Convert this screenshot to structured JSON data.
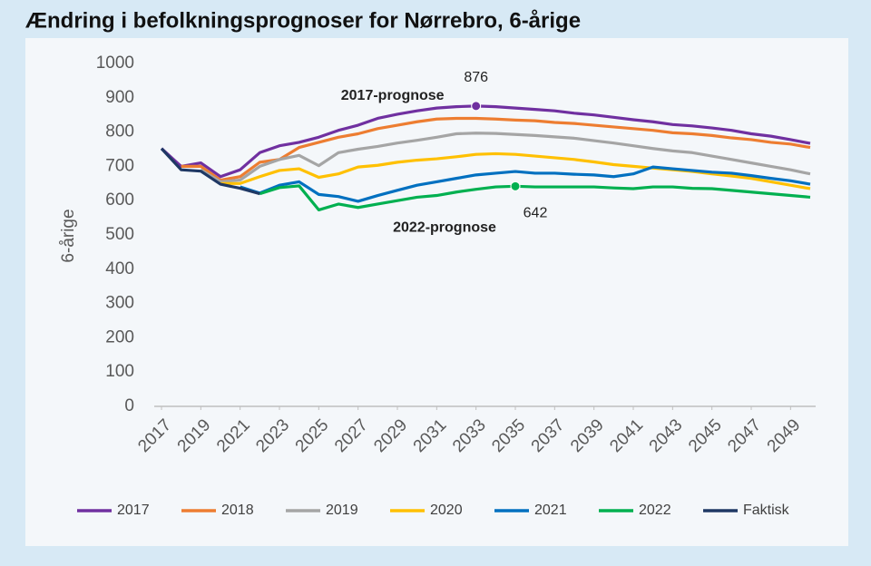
{
  "chart_data": {
    "type": "line",
    "title": "Ændring i befolkningsprognoser for Nørrebro, 6-årige",
    "y_label": "6-årige",
    "x": [
      2017,
      2018,
      2019,
      2020,
      2021,
      2022,
      2023,
      2024,
      2025,
      2026,
      2027,
      2028,
      2029,
      2030,
      2031,
      2032,
      2033,
      2034,
      2035,
      2036,
      2037,
      2038,
      2039,
      2040,
      2041,
      2042,
      2043,
      2044,
      2045,
      2046,
      2047,
      2048,
      2049,
      2050
    ],
    "xlim": [
      2017,
      2050
    ],
    "xticks": [
      2017,
      2019,
      2021,
      2023,
      2025,
      2027,
      2029,
      2031,
      2033,
      2035,
      2037,
      2039,
      2041,
      2043,
      2045,
      2047,
      2049
    ],
    "ylim": [
      0,
      1000
    ],
    "yticks": [
      0,
      100,
      200,
      300,
      400,
      500,
      600,
      700,
      800,
      900,
      1000
    ],
    "grid": false,
    "legend": "bottom",
    "annotations": [
      "2017-prognose",
      "2022-prognose"
    ],
    "highlights": [
      {
        "series": 0,
        "x": 2033
      },
      {
        "series": 5,
        "x": 2035
      }
    ],
    "series": [
      {
        "name": "2017",
        "color": "#7030a0",
        "values": [
          752,
          700,
          710,
          670,
          690,
          740,
          760,
          770,
          785,
          805,
          820,
          840,
          852,
          862,
          870,
          874,
          876,
          874,
          870,
          866,
          862,
          855,
          850,
          843,
          836,
          830,
          822,
          818,
          812,
          805,
          795,
          788,
          778,
          767
        ]
      },
      {
        "name": "2018",
        "color": "#ed7d31",
        "values": [
          null,
          700,
          700,
          660,
          670,
          712,
          720,
          755,
          770,
          785,
          795,
          810,
          820,
          830,
          838,
          840,
          840,
          838,
          835,
          833,
          828,
          825,
          820,
          815,
          810,
          805,
          798,
          795,
          790,
          783,
          778,
          770,
          765,
          755
        ]
      },
      {
        "name": "2019",
        "color": "#a5a5a5",
        "values": [
          null,
          null,
          690,
          655,
          660,
          700,
          720,
          732,
          702,
          740,
          750,
          758,
          768,
          776,
          785,
          795,
          797,
          796,
          793,
          790,
          786,
          782,
          775,
          768,
          760,
          752,
          745,
          740,
          730,
          720,
          710,
          700,
          690,
          678
        ]
      },
      {
        "name": "2020",
        "color": "#ffc000",
        "values": [
          null,
          null,
          null,
          650,
          650,
          670,
          688,
          693,
          668,
          678,
          698,
          703,
          712,
          718,
          722,
          728,
          735,
          737,
          735,
          730,
          725,
          720,
          713,
          705,
          700,
          695,
          690,
          685,
          678,
          672,
          665,
          655,
          645,
          635
        ]
      },
      {
        "name": "2021",
        "color": "#0070c0",
        "values": [
          null,
          null,
          null,
          null,
          640,
          622,
          645,
          655,
          618,
          612,
          598,
          615,
          630,
          645,
          655,
          665,
          675,
          680,
          685,
          680,
          680,
          677,
          675,
          670,
          678,
          698,
          693,
          688,
          683,
          680,
          673,
          665,
          658,
          648
        ]
      },
      {
        "name": "2022",
        "color": "#00b050",
        "values": [
          null,
          null,
          null,
          null,
          null,
          620,
          638,
          643,
          573,
          590,
          580,
          590,
          600,
          610,
          615,
          625,
          633,
          640,
          642,
          640,
          640,
          640,
          640,
          637,
          635,
          640,
          640,
          636,
          635,
          630,
          625,
          620,
          615,
          610
        ]
      },
      {
        "name": "Faktisk",
        "color": "#1f3864",
        "values": [
          752,
          690,
          686,
          648,
          636,
          620,
          null,
          null,
          null,
          null,
          null,
          null,
          null,
          null,
          null,
          null,
          null,
          null,
          null,
          null,
          null,
          null,
          null,
          null,
          null,
          null,
          null,
          null,
          null,
          null,
          null,
          null,
          null,
          null
        ]
      }
    ]
  }
}
